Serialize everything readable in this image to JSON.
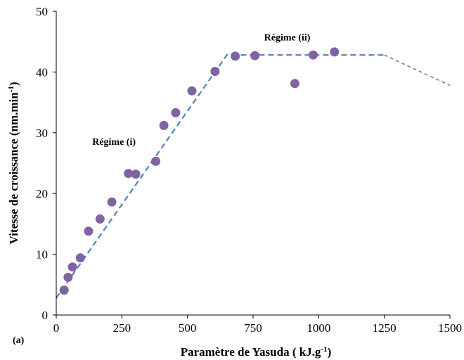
{
  "chart_data": {
    "type": "scatter",
    "panel_label": "(a)",
    "xlabel": "Paramètre de Yasuda ( kJ.g",
    "xlabel_sup": "-1",
    "xlabel_end": ")",
    "ylabel": "Vitesse de croissance (nm.min",
    "ylabel_sup": "-1",
    "ylabel_end": ")",
    "xlim": [
      0,
      1500
    ],
    "ylim": [
      0,
      50
    ],
    "xticks": [
      0,
      250,
      500,
      750,
      1000,
      1250,
      1500
    ],
    "yticks": [
      0,
      10,
      20,
      30,
      40,
      50
    ],
    "grid": false,
    "marker_color": "#8064a2",
    "points": [
      {
        "x": 30,
        "y": 4.1
      },
      {
        "x": 45,
        "y": 6.2
      },
      {
        "x": 62,
        "y": 7.9
      },
      {
        "x": 92,
        "y": 9.4
      },
      {
        "x": 123,
        "y": 13.8
      },
      {
        "x": 167,
        "y": 15.8
      },
      {
        "x": 212,
        "y": 18.6
      },
      {
        "x": 275,
        "y": 23.3
      },
      {
        "x": 303,
        "y": 23.2
      },
      {
        "x": 379,
        "y": 25.3
      },
      {
        "x": 410,
        "y": 31.2
      },
      {
        "x": 455,
        "y": 33.3
      },
      {
        "x": 517,
        "y": 36.9
      },
      {
        "x": 605,
        "y": 40.1
      },
      {
        "x": 682,
        "y": 42.6
      },
      {
        "x": 757,
        "y": 42.7
      },
      {
        "x": 909,
        "y": 38.1
      },
      {
        "x": 979,
        "y": 42.8
      },
      {
        "x": 1060,
        "y": 43.3
      }
    ],
    "fit_lines": [
      {
        "color": "#4f81bd",
        "points": [
          [
            0,
            2.8
          ],
          [
            650,
            42.8
          ],
          [
            1250,
            42.8
          ]
        ]
      },
      {
        "color": "#7f7f7f",
        "points": [
          [
            1250,
            42.8
          ],
          [
            1500,
            37.8
          ]
        ]
      }
    ],
    "annotations": [
      {
        "text": "Régime (i)",
        "x": 220,
        "y": 28.0
      },
      {
        "text": "Régime (ii)",
        "x": 880,
        "y": 45.2
      }
    ]
  }
}
